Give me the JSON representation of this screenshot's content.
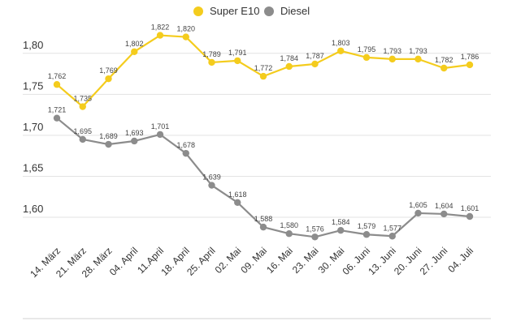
{
  "chart_data": {
    "type": "line",
    "title": "",
    "xlabel": "",
    "ylabel": "",
    "ylim": [
      1.55,
      1.85
    ],
    "yticks": [
      "1,60",
      "1,65",
      "1,70",
      "1,75",
      "1,80"
    ],
    "grid": true,
    "legend_position": "top-center",
    "categories": [
      "14. März",
      "21. März",
      "28. März",
      "04. April",
      "11.April",
      "18. April",
      "25. April",
      "02. Mai",
      "09. Mai",
      "16. Mai",
      "23. Mai",
      "30. Mai",
      "06. Juni",
      "13. Juni",
      "20. Juni",
      "27. Juni",
      "04. Juli"
    ],
    "series": [
      {
        "name": "Super E10",
        "color": "#f4cc1d",
        "values": [
          1.762,
          1.735,
          1.769,
          1.802,
          1.822,
          1.82,
          1.789,
          1.791,
          1.772,
          1.784,
          1.787,
          1.803,
          1.795,
          1.793,
          1.793,
          1.782,
          1.786
        ],
        "labels": [
          "1,762",
          "1,735",
          "1,769",
          "1,802",
          "1,822",
          "1,820",
          "1,789",
          "1,791",
          "1,772",
          "1,784",
          "1,787",
          "1,803",
          "1,795",
          "1,793",
          "1,793",
          "1,782",
          "1,786"
        ]
      },
      {
        "name": "Diesel",
        "color": "#8c8c8c",
        "values": [
          1.721,
          1.695,
          1.689,
          1.693,
          1.701,
          1.678,
          1.639,
          1.618,
          1.588,
          1.58,
          1.576,
          1.584,
          1.579,
          1.577,
          1.605,
          1.604,
          1.601
        ],
        "labels": [
          "1,721",
          "1,695",
          "1,689",
          "1,693",
          "1,701",
          "1,678",
          "1,639",
          "1,618",
          "1,588",
          "1,580",
          "1,576",
          "1,584",
          "1,579",
          "1,577",
          "1,605",
          "1,604",
          "1,601"
        ]
      }
    ]
  }
}
